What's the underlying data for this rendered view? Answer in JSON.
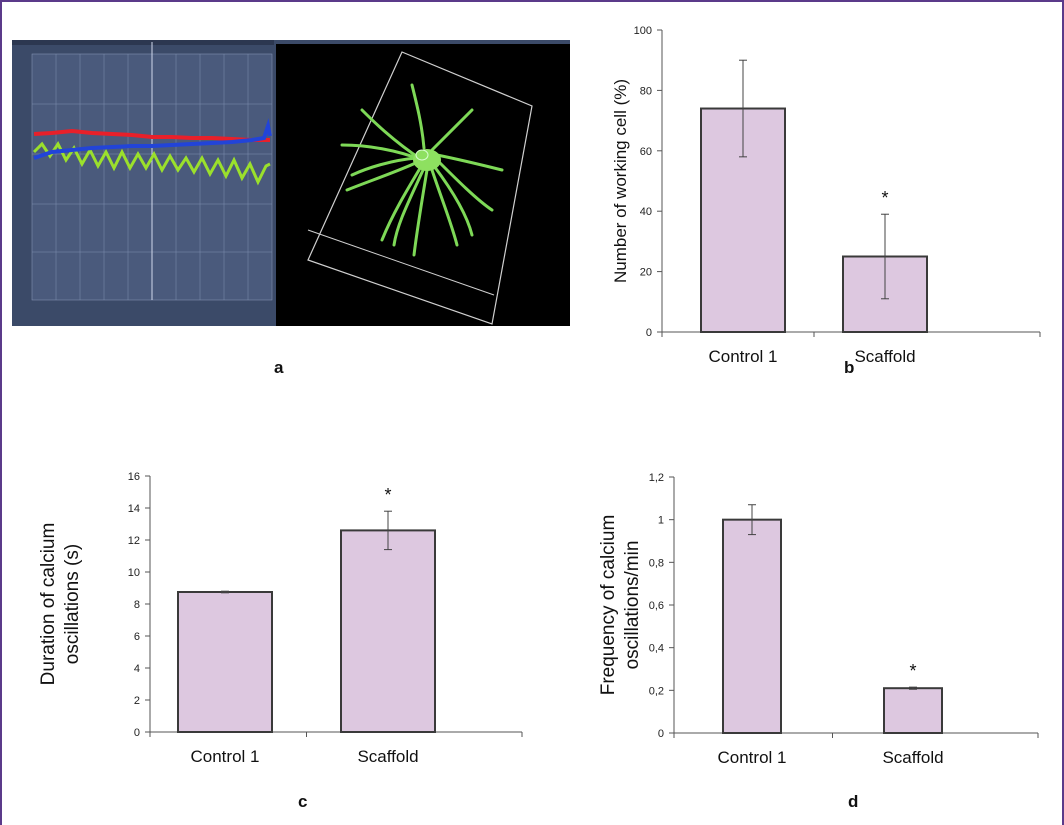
{
  "panels": {
    "a": {
      "caption": "a"
    },
    "b": {
      "caption": "b"
    },
    "c": {
      "caption": "c"
    },
    "d": {
      "caption": "d"
    }
  },
  "colors": {
    "bar_fill": "#ddc8e0",
    "bar_stroke": "#3a3a3a",
    "frame": "#5b3a8a",
    "trace_region1": "#e8202a",
    "trace_region2": "#9be02c",
    "trace_region3": "#2244d8",
    "cell_green": "#7ed957"
  },
  "chart_data": [
    {
      "id": "b",
      "type": "bar",
      "categories": [
        "Control 1",
        "Scaffold"
      ],
      "values": [
        74,
        25
      ],
      "error": [
        16,
        14
      ],
      "annotations": [
        "",
        "*"
      ],
      "ylabel": "Number of working cell (%)",
      "ylim": [
        0,
        100
      ],
      "yticks": [
        0,
        20,
        40,
        60,
        80,
        100
      ],
      "ytick_labels": [
        "0",
        "20",
        "40",
        "60",
        "80",
        "100"
      ]
    },
    {
      "id": "c",
      "type": "bar",
      "categories": [
        "Control 1",
        "Scaffold"
      ],
      "values": [
        8.75,
        12.6
      ],
      "error": [
        0.05,
        1.2
      ],
      "annotations": [
        "",
        "*"
      ],
      "ylabel_lines": [
        "Duration of calcium",
        "oscillations (s)"
      ],
      "ylim": [
        0,
        16
      ],
      "yticks": [
        0,
        2,
        4,
        6,
        8,
        10,
        12,
        14,
        16
      ],
      "ytick_labels": [
        "0",
        "2",
        "4",
        "6",
        "8",
        "10",
        "12",
        "14",
        "16"
      ]
    },
    {
      "id": "d",
      "type": "bar",
      "categories": [
        "Control 1",
        "Scaffold"
      ],
      "values": [
        1.0,
        0.21
      ],
      "error": [
        0.07,
        0.005
      ],
      "annotations": [
        "",
        "*"
      ],
      "ylabel_lines": [
        "Frequency of calcium",
        "oscillations/min"
      ],
      "ylim": [
        0,
        1.2
      ],
      "yticks": [
        0,
        0.2,
        0.4,
        0.6,
        0.8,
        1,
        1.2
      ],
      "ytick_labels": [
        "0",
        "0,2",
        "0,4",
        "0,6",
        "0,8",
        "1",
        "1,2"
      ]
    }
  ]
}
